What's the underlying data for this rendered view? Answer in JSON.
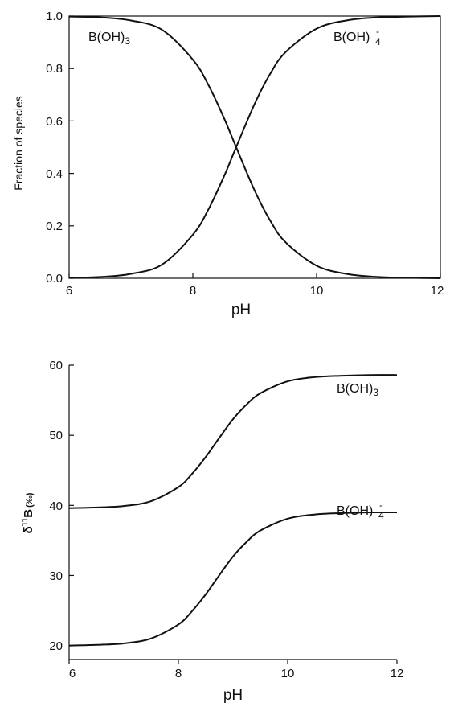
{
  "chart_data": [
    {
      "type": "line",
      "xlabel": "pH",
      "ylabel": "Fraction of species",
      "xlim": [
        6,
        12
      ],
      "ylim": [
        0,
        1
      ],
      "x_ticks": [
        "6",
        "8",
        "10",
        "12"
      ],
      "y_ticks": [
        "0.0",
        "0.2",
        "0.4",
        "0.6",
        "0.8",
        "1.0"
      ],
      "grid": false,
      "x": [
        6.0,
        6.5,
        7.0,
        7.5,
        8.0,
        8.25,
        8.5,
        8.7,
        9.0,
        9.25,
        9.5,
        10.0,
        10.5,
        11.0,
        11.5,
        12.0
      ],
      "series": [
        {
          "name": "B(OH)",
          "sub": "3",
          "sup": "",
          "values": [
            0.998,
            0.995,
            0.983,
            0.948,
            0.834,
            0.738,
            0.613,
            0.5,
            0.334,
            0.22,
            0.137,
            0.048,
            0.016,
            0.005,
            0.002,
            0.0
          ]
        },
        {
          "name": "B(OH)",
          "sub": "4",
          "sup": "-",
          "values": [
            0.002,
            0.005,
            0.017,
            0.052,
            0.166,
            0.262,
            0.387,
            0.5,
            0.666,
            0.78,
            0.863,
            0.952,
            0.984,
            0.995,
            0.998,
            1.0
          ]
        }
      ]
    },
    {
      "type": "line",
      "xlabel": "pH",
      "ylabel_main": "δ",
      "ylabel_sup": "11",
      "ylabel_rest": "B",
      "ylabel_unit": "(‰)",
      "xlim": [
        6,
        12
      ],
      "ylim": [
        18,
        60
      ],
      "x_ticks": [
        "6",
        "8",
        "10",
        "12"
      ],
      "y_ticks": [
        "20",
        "30",
        "40",
        "50",
        "60"
      ],
      "grid": false,
      "x": [
        6.0,
        6.5,
        7.0,
        7.5,
        8.0,
        8.25,
        8.5,
        8.7,
        9.0,
        9.25,
        9.5,
        10.0,
        10.5,
        11.0,
        11.5,
        12.0
      ],
      "series": [
        {
          "name": "B(OH)",
          "sub": "3",
          "sup": "",
          "values": [
            39.6,
            39.7,
            39.9,
            40.6,
            42.6,
            44.5,
            46.9,
            49.1,
            52.3,
            54.4,
            56.0,
            57.7,
            58.3,
            58.5,
            58.6,
            58.6
          ]
        },
        {
          "name": "B(OH)",
          "sub": "4",
          "sup": "-",
          "values": [
            20.0,
            20.1,
            20.3,
            21.0,
            23.0,
            24.9,
            27.3,
            29.5,
            32.7,
            34.8,
            36.4,
            38.1,
            38.7,
            38.9,
            39.0,
            39.0
          ]
        }
      ]
    }
  ]
}
